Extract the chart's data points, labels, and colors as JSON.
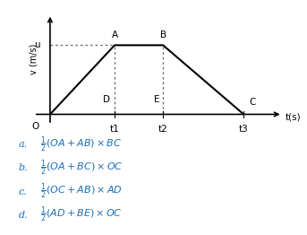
{
  "graph": {
    "u_level": 1.0,
    "t1": 2.0,
    "t2": 3.5,
    "t3": 6.0,
    "x_max": 7.2,
    "y_max": 1.45
  },
  "options": [
    {
      "label": "a.",
      "text": "$\\frac{1}{2}(OA + AB) \\times BC$"
    },
    {
      "label": "b.",
      "text": "$\\frac{1}{2}(OA + BC) \\times OC$"
    },
    {
      "label": "c.",
      "text": "$\\frac{1}{2}(OC + AB) \\times AD$"
    },
    {
      "label": "d.",
      "text": "$\\frac{1}{2}(AD + BE) \\times OC$"
    }
  ],
  "text_color": "#1a6eb5",
  "graph_color": "#000000",
  "dotted_color": "#777777",
  "bg_color": "#ffffff",
  "label_fontsize": 7.5,
  "option_fontsize": 8.0,
  "graph_linewidth": 1.5
}
